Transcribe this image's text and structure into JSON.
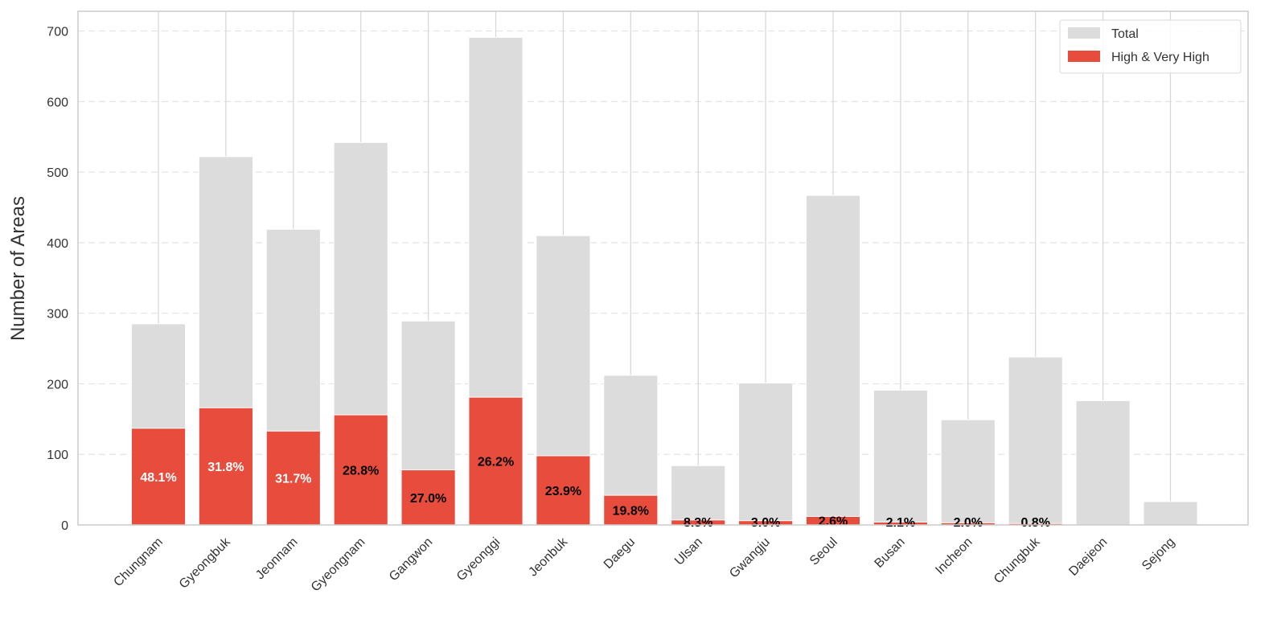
{
  "chart_data": {
    "type": "bar",
    "y_label": "Number of Areas",
    "categories": [
      "Chungnam",
      "Gyeongbuk",
      "Jeonnam",
      "Gyeongnam",
      "Gangwon",
      "Gyeonggi",
      "Jeonbuk",
      "Daegu",
      "Ulsan",
      "Gwangju",
      "Seoul",
      "Busan",
      "Incheon",
      "Chungbuk",
      "Daejeon",
      "Sejong"
    ],
    "series": [
      {
        "name": "Total",
        "color": "#dcdcdc",
        "values": [
          285,
          522,
          419,
          542,
          289,
          691,
          410,
          212,
          84,
          201,
          467,
          191,
          149,
          238,
          176,
          33
        ]
      },
      {
        "name": "High & Very High",
        "color": "#e74c3c",
        "values": [
          137,
          166,
          133,
          156,
          78,
          181,
          98,
          42,
          7,
          6,
          12,
          4,
          3,
          2,
          0,
          0
        ]
      }
    ],
    "percent_labels": [
      "48.1%",
      "31.8%",
      "31.7%",
      "28.8%",
      "27.0%",
      "26.2%",
      "23.9%",
      "19.8%",
      "8.3%",
      "3.0%",
      "2.6%",
      "2.1%",
      "2.0%",
      "0.8%",
      null,
      null
    ],
    "percent_label_colors": [
      "#ffffff",
      "#ffffff",
      "#ffffff",
      "#000000",
      "#000000",
      "#000000",
      "#000000",
      "#000000",
      "#000000",
      "#000000",
      "#000000",
      "#000000",
      "#000000",
      "#000000",
      null,
      null
    ],
    "overlap": true,
    "ylim": [
      0,
      728
    ],
    "yticks": [
      0,
      100,
      200,
      300,
      400,
      500,
      600,
      700
    ],
    "grid": true,
    "legend": "upper right"
  }
}
